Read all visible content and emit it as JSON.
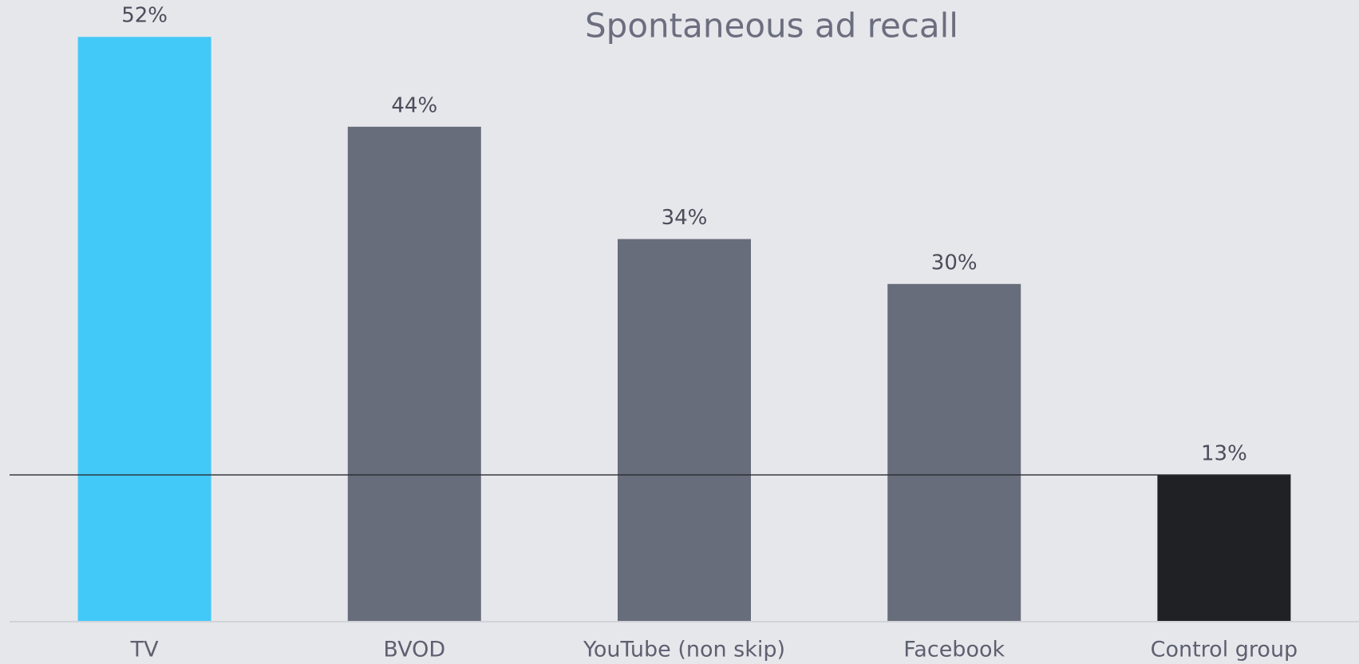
{
  "chart_data": {
    "type": "bar",
    "title": "Spontaneous ad recall",
    "categories": [
      "TV",
      "BVOD",
      "YouTube (non skip)",
      "Facebook",
      "Control group"
    ],
    "values": [
      52,
      44,
      34,
      30,
      13
    ],
    "value_labels": [
      "52%",
      "44%",
      "34%",
      "30%",
      "13%"
    ],
    "colors": [
      "#43c9f7",
      "#686d7b",
      "#686d7b",
      "#686d7b",
      "#202125"
    ],
    "reference_line": 13,
    "ylim": [
      0,
      55
    ]
  }
}
